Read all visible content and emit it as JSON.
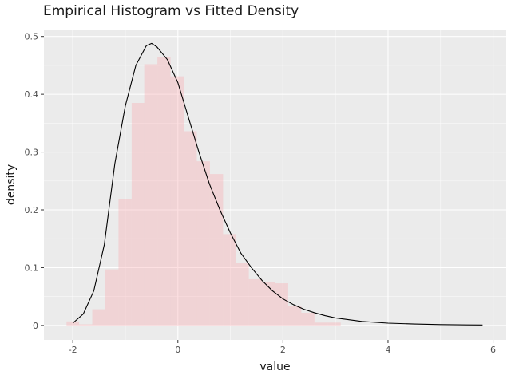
{
  "chart_data": {
    "type": "bar",
    "title": "Empirical Histogram vs Fitted Density",
    "xlabel": "value",
    "ylabel": "density",
    "xlim": [
      -2.55,
      6.25
    ],
    "ylim": [
      -0.025,
      0.512
    ],
    "x_ticks": [
      -2,
      0,
      2,
      4,
      6
    ],
    "y_ticks": [
      0,
      0.1,
      0.2,
      0.3,
      0.4,
      0.5
    ],
    "x_tick_labels": [
      "-2",
      "0",
      "2",
      "4",
      "6"
    ],
    "y_tick_labels": [
      "0",
      "0.1",
      "0.2",
      "0.3",
      "0.4",
      "0.5"
    ],
    "grid": true,
    "colors": {
      "panel": "#ebebeb",
      "grid_major": "#ffffff",
      "bars": "#f8a6ad",
      "bars_opacity": 0.35,
      "density_line": "#000000"
    },
    "histogram": {
      "name": "Empirical Histogram",
      "bin_edges": [
        -2.12,
        -1.88,
        -1.63,
        -1.38,
        -1.13,
        -0.88,
        -0.64,
        -0.39,
        -0.14,
        0.11,
        0.36,
        0.61,
        0.86,
        1.1,
        1.35,
        1.6,
        1.85,
        2.1,
        2.35,
        2.6,
        2.85,
        3.1
      ],
      "values": [
        0.007,
        0.002,
        0.028,
        0.097,
        0.218,
        0.385,
        0.452,
        0.465,
        0.431,
        0.336,
        0.284,
        0.262,
        0.158,
        0.108,
        0.08,
        0.075,
        0.073,
        0.033,
        0.022,
        0.005,
        0.005
      ]
    },
    "density": {
      "name": "Fitted Density",
      "x": [
        -2,
        -1.8,
        -1.6,
        -1.4,
        -1.2,
        -1.0,
        -0.8,
        -0.6,
        -0.5,
        -0.4,
        -0.2,
        0,
        0.2,
        0.4,
        0.6,
        0.8,
        1.0,
        1.2,
        1.4,
        1.6,
        1.8,
        2.0,
        2.2,
        2.4,
        2.6,
        2.8,
        3.0,
        3.5,
        4.0,
        4.5,
        5.0,
        5.5,
        5.8
      ],
      "y": [
        0.004,
        0.02,
        0.06,
        0.14,
        0.28,
        0.38,
        0.45,
        0.484,
        0.488,
        0.482,
        0.46,
        0.42,
        0.36,
        0.3,
        0.245,
        0.2,
        0.16,
        0.125,
        0.1,
        0.078,
        0.06,
        0.046,
        0.036,
        0.028,
        0.022,
        0.017,
        0.013,
        0.007,
        0.004,
        0.0025,
        0.0015,
        0.001,
        0.0008
      ]
    }
  }
}
